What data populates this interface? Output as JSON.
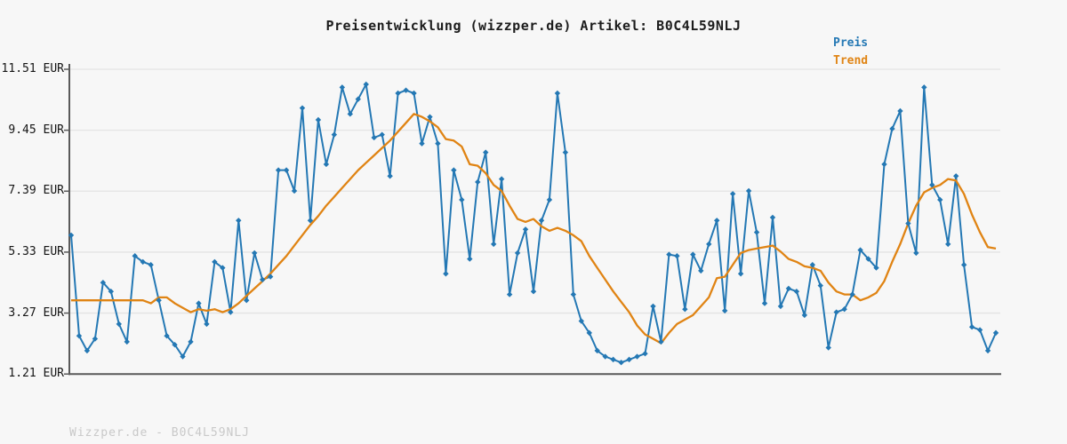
{
  "header": {
    "title": "Preisentwicklung (wizzper.de) Artikel: B0C4L59NLJ"
  },
  "legend": [
    {
      "label": "Preis",
      "color": "#2478b4"
    },
    {
      "label": "Trend",
      "color": "#e08414"
    }
  ],
  "y_axis": {
    "tick_labels": [
      "11.51 EUR",
      "9.45 EUR",
      "7.39 EUR",
      "5.33 EUR",
      "3.27 EUR",
      "1.21 EUR"
    ],
    "tick_values": [
      11.51,
      9.45,
      7.39,
      5.33,
      3.27,
      1.21
    ],
    "unit": "EUR"
  },
  "watermark": "Wizzper.de - B0C4L59NLJ",
  "chart_data": {
    "type": "line",
    "title": "Preisentwicklung (wizzper.de) Artikel: B0C4L59NLJ",
    "xlabel": "",
    "ylabel": "",
    "x_tick_labels_visible": false,
    "ylim": [
      1.21,
      11.51
    ],
    "y_ticks": [
      1.21,
      3.27,
      5.33,
      7.39,
      9.45,
      11.51
    ],
    "grid": "horizontal",
    "legend_position": "top-right",
    "unit": "EUR",
    "series": [
      {
        "name": "Preis",
        "color": "#2478b4",
        "marker": "diamond",
        "values": [
          5.9,
          2.5,
          2.0,
          2.4,
          4.3,
          4.0,
          2.9,
          2.3,
          5.2,
          5.0,
          4.9,
          3.7,
          2.5,
          2.2,
          1.8,
          2.3,
          3.6,
          2.9,
          5.0,
          4.8,
          3.3,
          6.4,
          3.7,
          5.3,
          4.4,
          4.5,
          8.1,
          8.1,
          7.4,
          10.2,
          6.4,
          9.8,
          8.3,
          9.3,
          10.9,
          10.0,
          10.5,
          11.0,
          9.2,
          9.3,
          7.9,
          10.7,
          10.8,
          10.7,
          9.0,
          9.9,
          9.0,
          4.6,
          8.1,
          7.1,
          5.1,
          7.7,
          8.7,
          5.6,
          7.8,
          3.9,
          5.3,
          6.1,
          4.0,
          6.4,
          7.1,
          10.7,
          8.7,
          3.9,
          3.0,
          2.6,
          2.0,
          1.8,
          1.7,
          1.6,
          1.7,
          1.8,
          1.9,
          3.5,
          2.3,
          5.25,
          5.2,
          3.4,
          5.25,
          4.7,
          5.6,
          6.4,
          3.35,
          7.3,
          4.6,
          7.4,
          6.0,
          3.6,
          6.5,
          3.5,
          4.1,
          4.0,
          3.2,
          4.9,
          4.2,
          2.1,
          3.3,
          3.4,
          3.9,
          5.4,
          5.1,
          4.8,
          8.3,
          9.5,
          10.1,
          6.3,
          5.3,
          10.9,
          7.6,
          7.1,
          5.6,
          7.9,
          4.9,
          2.8,
          2.7,
          2.0,
          2.6
        ]
      },
      {
        "name": "Trend",
        "color": "#e08414",
        "marker": "none",
        "values": [
          3.7,
          3.7,
          3.7,
          3.7,
          3.7,
          3.7,
          3.7,
          3.7,
          3.7,
          3.7,
          3.6,
          3.8,
          3.8,
          3.6,
          3.45,
          3.3,
          3.4,
          3.35,
          3.4,
          3.3,
          3.4,
          3.6,
          3.85,
          4.1,
          4.35,
          4.6,
          4.9,
          5.2,
          5.55,
          5.9,
          6.25,
          6.55,
          6.9,
          7.2,
          7.5,
          7.8,
          8.1,
          8.35,
          8.6,
          8.85,
          9.1,
          9.4,
          9.7,
          10.0,
          9.9,
          9.75,
          9.55,
          9.15,
          9.1,
          8.9,
          8.3,
          8.25,
          8.0,
          7.6,
          7.4,
          6.9,
          6.45,
          6.35,
          6.45,
          6.2,
          6.05,
          6.15,
          6.05,
          5.9,
          5.7,
          5.2,
          4.8,
          4.4,
          4.0,
          3.65,
          3.3,
          2.85,
          2.55,
          2.4,
          2.25,
          2.6,
          2.9,
          3.05,
          3.2,
          3.5,
          3.8,
          4.45,
          4.5,
          4.9,
          5.3,
          5.4,
          5.45,
          5.5,
          5.55,
          5.35,
          5.1,
          5.0,
          4.85,
          4.8,
          4.7,
          4.3,
          4.0,
          3.9,
          3.9,
          3.7,
          3.8,
          3.95,
          4.35,
          5.0,
          5.6,
          6.3,
          6.9,
          7.35,
          7.5,
          7.6,
          7.8,
          7.75,
          7.3,
          6.6,
          6.0,
          5.5,
          5.45
        ]
      }
    ]
  }
}
